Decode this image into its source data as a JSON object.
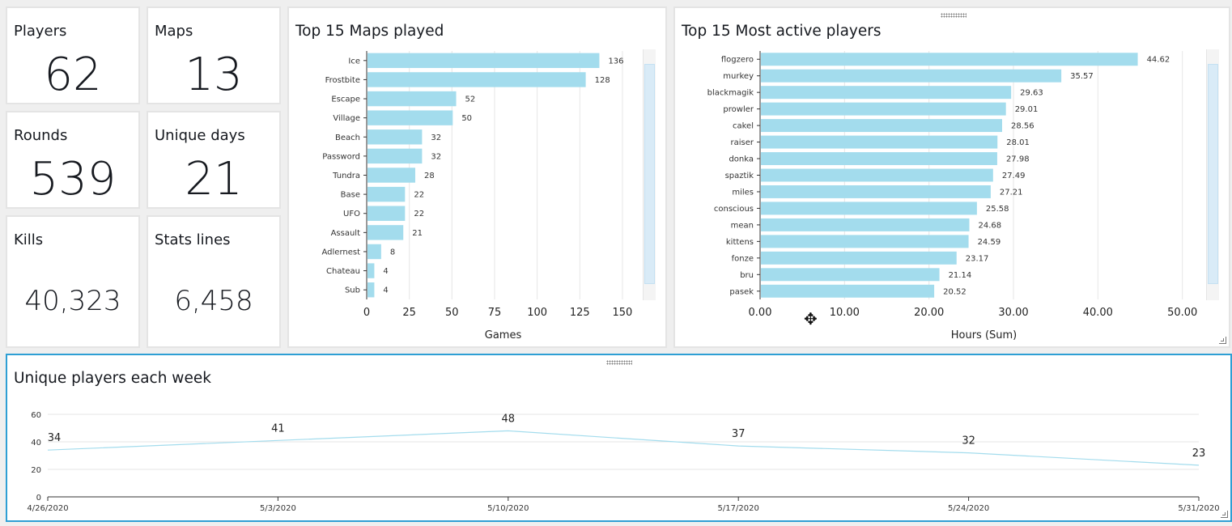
{
  "kpis": {
    "players": {
      "label": "Players",
      "value": "62"
    },
    "maps": {
      "label": "Maps",
      "value": "13"
    },
    "rounds": {
      "label": "Rounds",
      "value": "539"
    },
    "unique_days": {
      "label": "Unique days",
      "value": "21"
    },
    "kills": {
      "label": "Kills",
      "value": "40,323"
    },
    "stats_lines": {
      "label": "Stats lines",
      "value": "6,458"
    }
  },
  "icons": {
    "move_cursor": "move-cursor-icon",
    "drag_handle": "drag-handle-icon",
    "resize_grip": "resize-grip-icon"
  },
  "colors": {
    "bar": "#a3dced",
    "line": "#a3dced",
    "selected_border": "#2e9fd4",
    "grid": "#e6e6e6"
  },
  "chart_data": [
    {
      "type": "bar",
      "orientation": "horizontal",
      "title": "Top 15 Maps played",
      "xlabel": "Games",
      "ylabel": "",
      "categories": [
        "Ice",
        "Frostbite",
        "Escape",
        "Village",
        "Beach",
        "Password",
        "Tundra",
        "Base",
        "UFO",
        "Assault",
        "Adlernest",
        "Chateau",
        "Sub"
      ],
      "values": [
        136,
        128,
        52,
        50,
        32,
        32,
        28,
        22,
        22,
        21,
        8,
        4,
        4
      ],
      "value_labels": [
        "136",
        "128",
        "52",
        "50",
        "32",
        "32",
        "28",
        "22",
        "22",
        "21",
        "8",
        "4",
        "4"
      ],
      "xlim": [
        0,
        160
      ],
      "ticks": [
        0,
        25,
        50,
        75,
        100,
        125,
        150
      ],
      "tick_labels": [
        "0",
        "25",
        "50",
        "75",
        "100",
        "125",
        "150"
      ],
      "grid": true
    },
    {
      "type": "bar",
      "orientation": "horizontal",
      "title": "Top 15 Most active players",
      "xlabel": "Hours (Sum)",
      "ylabel": "",
      "categories": [
        "flogzero",
        "murkey",
        "blackmagik",
        "prowler",
        "cakel",
        "raiser",
        "donka",
        "spaztik",
        "miles",
        "conscious",
        "mean",
        "kittens",
        "fonze",
        "bru",
        "pasek"
      ],
      "values": [
        44.62,
        35.57,
        29.63,
        29.01,
        28.56,
        28.01,
        27.98,
        27.49,
        27.21,
        25.58,
        24.68,
        24.59,
        23.17,
        21.14,
        20.52
      ],
      "value_labels": [
        "44.62",
        "35.57",
        "29.63",
        "29.01",
        "28.56",
        "28.01",
        "27.98",
        "27.49",
        "27.21",
        "25.58",
        "24.68",
        "24.59",
        "23.17",
        "21.14",
        "20.52"
      ],
      "xlim": [
        0,
        53
      ],
      "ticks": [
        0,
        10,
        20,
        30,
        40,
        50
      ],
      "tick_labels": [
        "0.00",
        "10.00",
        "20.00",
        "30.00",
        "40.00",
        "50.00"
      ],
      "grid": true
    },
    {
      "type": "line",
      "title": "Unique players each week",
      "xlabel": "",
      "ylabel": "",
      "x": [
        "4/26/2020",
        "5/3/2020",
        "5/10/2020",
        "5/17/2020",
        "5/24/2020",
        "5/31/2020"
      ],
      "values": [
        34,
        41,
        48,
        37,
        32,
        23
      ],
      "value_labels": [
        "34",
        "41",
        "48",
        "37",
        "32",
        "23"
      ],
      "ylim": [
        0,
        60
      ],
      "yticks": [
        0,
        20,
        40,
        60
      ],
      "ytick_labels": [
        "0",
        "20",
        "40",
        "60"
      ],
      "grid": true
    }
  ]
}
